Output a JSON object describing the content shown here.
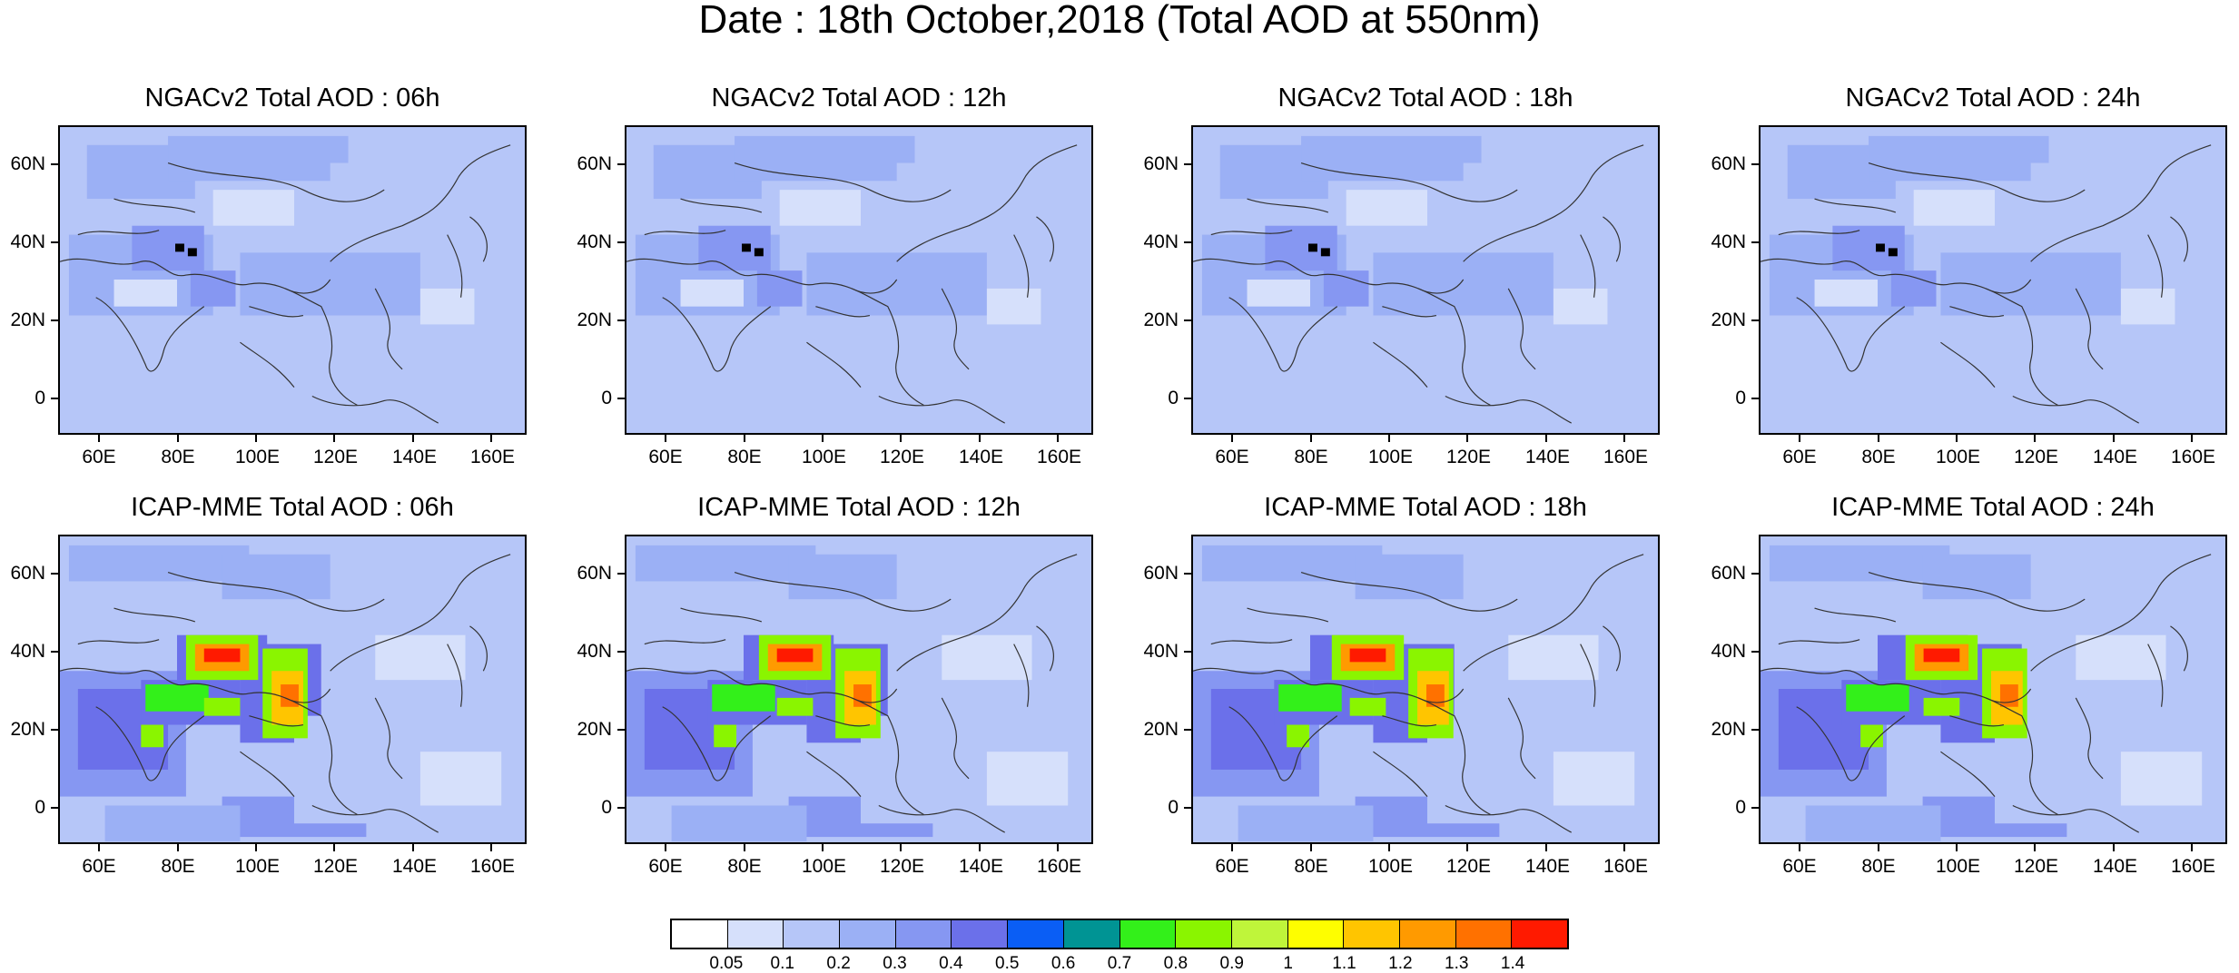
{
  "title": "Date : 18th October,2018 (Total AOD at 550nm)",
  "lon_labels": [
    "60E",
    "80E",
    "100E",
    "120E",
    "140E",
    "160E"
  ],
  "lat_labels": [
    "60N",
    "40N",
    "20N",
    "0"
  ],
  "panels": [
    {
      "title": "NGACv2 Total AOD : 06h"
    },
    {
      "title": "NGACv2 Total AOD : 12h"
    },
    {
      "title": "NGACv2 Total AOD : 18h"
    },
    {
      "title": "NGACv2 Total AOD : 24h"
    },
    {
      "title": "ICAP-MME Total AOD : 06h"
    },
    {
      "title": "ICAP-MME Total AOD : 12h"
    },
    {
      "title": "ICAP-MME Total AOD : 18h"
    },
    {
      "title": "ICAP-MME Total AOD : 24h"
    }
  ],
  "colorbar": {
    "labels": [
      "0.05",
      "0.1",
      "0.2",
      "0.3",
      "0.4",
      "0.5",
      "0.6",
      "0.7",
      "0.8",
      "0.9",
      "1",
      "1.1",
      "1.2",
      "1.3",
      "1.4"
    ],
    "colors": [
      "#ffffff",
      "#d6e0fb",
      "#b6c6f8",
      "#9bb0f5",
      "#8697f2",
      "#6b70ea",
      "#0a5ef5",
      "#009494",
      "#33f01a",
      "#8af500",
      "#bff53a",
      "#fefe00",
      "#ffc500",
      "#ff9a00",
      "#ff7100",
      "#ff1a00"
    ]
  }
}
